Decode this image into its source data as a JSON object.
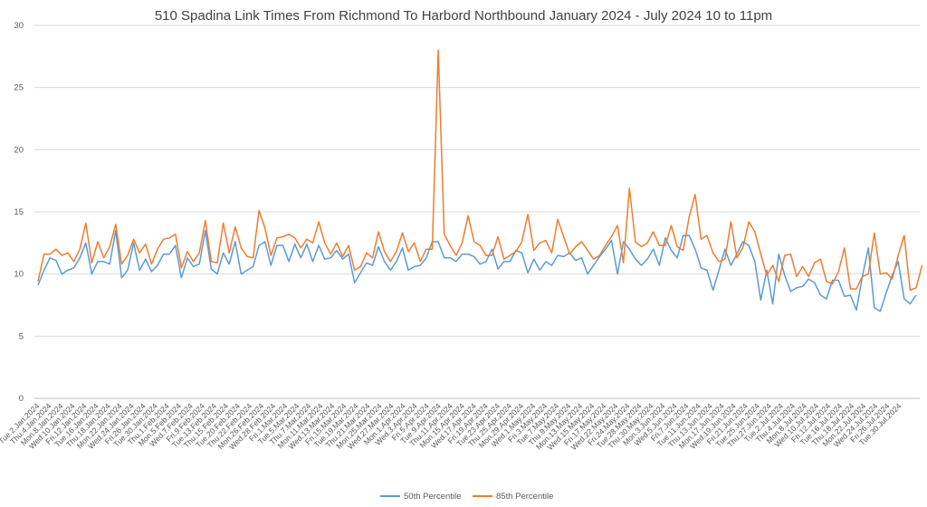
{
  "chart_data": {
    "type": "line",
    "title": "510 Spadina Link Times From Richmond To Harbord Northbound January 2024 - July 2024 10 to 11pm",
    "xlabel": "",
    "ylabel": "",
    "ylim": [
      0,
      30
    ],
    "yticks": [
      0,
      5,
      10,
      15,
      20,
      25,
      30
    ],
    "grid": true,
    "legend_position": "bottom",
    "x_tick_labels": [
      "Tue.2.Jan.2024",
      "Thu.4.Jan.2024",
      "Mon.8.Jan.2024",
      "Wed.10.Jan.2024",
      "Fri.12.Jan.2024",
      "Tue.16.Jan.2024",
      "Thu.18.Jan.2024",
      "Mon.22.Jan.2024",
      "Wed.24.Jan.2024",
      "Fri.26.Jan.2024",
      "Tue.30.Jan.2024",
      "Thu.1.Feb.2024",
      "Mon.5.Feb.2024",
      "Wed.7.Feb.2024",
      "Fri.9.Feb.2024",
      "Tue.13.Feb.2024",
      "Thu.15.Feb.2024",
      "Tue.20.Feb.2024",
      "Thu.22.Feb.2024",
      "Mon.26.Feb.2024",
      "Wed.28.Feb.2024",
      "Fri.1.Mar.2024",
      "Tue.5.Mar.2024",
      "Thu.7.Mar.2024",
      "Mon.11.Mar.2024",
      "Wed.13.Mar.2024",
      "Fri.15.Mar.2024",
      "Tue.19.Mar.2024",
      "Thu.21.Mar.2024",
      "Mon.25.Mar.2024",
      "Wed.27.Mar.2024",
      "Mon.1.Apr.2024",
      "Wed.3.Apr.2024",
      "Fri.5.Apr.2024",
      "Tue.9.Apr.2024",
      "Thu.11.Apr.2024",
      "Mon.15.Apr.2024",
      "Wed.17.Apr.2024",
      "Fri.19.Apr.2024",
      "Tue.23.Apr.2024",
      "Thu.25.Apr.2024",
      "Mon.29.Apr.2024",
      "Wed.1.May.2024",
      "Fri.3.May.2024",
      "Tue.7.May.2024",
      "Thu.9.May.2024",
      "Mon.13.May.2024",
      "Wed.15.May.2024",
      "Fri.17.May.2024",
      "Wed.22.May.2024",
      "Fri.24.May.2024",
      "Tue.28.May.2024",
      "Thu.30.May.2024",
      "Mon.3.Jun.2024",
      "Wed.5.Jun.2024",
      "Fri.7.Jun.2024",
      "Tue.11.Jun.2024",
      "Thu.13.Jun.2024",
      "Mon.17.Jun.2024",
      "Wed.19.Jun.2024",
      "Fri.21.Jun.2024",
      "Tue.25.Jun.2024",
      "Thu.27.Jun.2024",
      "Tue.2.Jul.2024",
      "Thu.4.Jul.2024",
      "Mon.8.Jul.2024",
      "Wed.10.Jul.2024",
      "Fri.12.Jul.2024",
      "Tue.16.Jul.2024",
      "Thu.18.Jul.2024",
      "Mon.22.Jul.2024",
      "Wed.24.Jul.2024",
      "Fri.26.Jul.2024",
      "Tue.30.Jul.2024"
    ],
    "series": [
      {
        "name": "50th Percentile",
        "color": "#5b9bd5",
        "values": [
          9.1,
          10.3,
          11.3,
          11.1,
          10.0,
          10.3,
          10.5,
          11.3,
          12.5,
          10.0,
          11.0,
          11.0,
          10.8,
          13.5,
          9.7,
          10.3,
          12.5,
          10.3,
          11.2,
          10.2,
          10.7,
          11.6,
          11.6,
          12.3,
          9.7,
          11.3,
          10.6,
          10.8,
          13.5,
          10.4,
          10.0,
          11.7,
          10.8,
          12.6,
          10.0,
          10.3,
          10.6,
          12.3,
          12.6,
          10.7,
          12.3,
          12.3,
          11.0,
          12.4,
          11.3,
          12.4,
          11.0,
          12.3,
          11.2,
          11.3,
          11.9,
          11.2,
          11.6,
          9.3,
          10.1,
          10.9,
          10.7,
          12.2,
          11.0,
          10.3,
          11.0,
          12.1,
          10.3,
          10.6,
          10.7,
          11.3,
          12.6,
          12.6,
          11.3,
          11.3,
          11.0,
          11.6,
          11.6,
          11.4,
          10.8,
          11.0,
          12.0,
          10.4,
          11.0,
          11.0,
          11.9,
          11.7,
          10.1,
          11.2,
          10.3,
          11.0,
          10.7,
          11.5,
          11.4,
          11.7,
          11.1,
          11.3,
          10.0,
          10.7,
          11.4,
          12.0,
          12.7,
          10.0,
          12.6,
          12.0,
          11.2,
          10.7,
          11.2,
          12.0,
          10.7,
          12.9,
          11.9,
          11.3,
          13.1,
          13.1,
          12.0,
          10.5,
          10.3,
          8.7,
          10.3,
          12.0,
          10.7,
          11.6,
          12.6,
          12.3,
          11.0,
          7.9,
          10.3,
          7.6,
          11.6,
          9.9,
          8.6,
          8.9,
          9.0,
          9.6,
          9.3,
          8.3,
          8.0,
          9.5,
          9.5,
          8.2,
          8.3,
          7.1,
          9.8,
          12.1,
          7.3,
          7.0,
          8.5,
          9.9,
          11.0,
          8.0,
          7.6,
          8.3
        ]
      },
      {
        "name": "85th Percentile",
        "color": "#ed7d31",
        "values": [
          9.4,
          11.6,
          11.6,
          12.0,
          11.5,
          11.7,
          11.0,
          12.0,
          14.1,
          10.9,
          12.6,
          11.3,
          12.2,
          14.0,
          10.8,
          11.5,
          12.8,
          11.7,
          12.4,
          10.8,
          12.0,
          12.8,
          12.9,
          13.2,
          10.5,
          11.8,
          11.0,
          11.7,
          14.3,
          11.0,
          10.9,
          14.1,
          11.7,
          13.8,
          12.1,
          11.4,
          11.3,
          15.1,
          13.7,
          11.5,
          12.9,
          13.0,
          13.2,
          12.9,
          12.1,
          12.8,
          12.5,
          14.2,
          12.5,
          11.6,
          12.5,
          11.4,
          12.3,
          10.3,
          10.6,
          11.7,
          11.3,
          13.4,
          11.8,
          11.0,
          11.8,
          13.3,
          11.8,
          12.5,
          11.0,
          12.0,
          12.0,
          28.0,
          13.2,
          12.3,
          11.5,
          12.5,
          14.7,
          12.6,
          12.3,
          11.5,
          11.5,
          13.0,
          11.2,
          11.5,
          11.8,
          12.6,
          14.8,
          11.9,
          12.5,
          12.7,
          11.7,
          14.4,
          13.0,
          11.6,
          12.2,
          12.6,
          11.9,
          11.2,
          11.5,
          12.3,
          13.0,
          13.9,
          10.9,
          16.9,
          12.6,
          12.2,
          12.5,
          13.4,
          12.3,
          12.3,
          13.9,
          12.2,
          11.9,
          14.6,
          16.4,
          12.8,
          13.1,
          11.7,
          11.0,
          11.2,
          14.2,
          11.3,
          12.1,
          14.2,
          13.4,
          11.6,
          9.9,
          10.7,
          9.4,
          11.5,
          11.6,
          9.8,
          10.6,
          9.8,
          10.9,
          11.2,
          9.4,
          9.2,
          10.2,
          12.1,
          8.8,
          8.8,
          9.8,
          10.0,
          13.3,
          10.0,
          10.1,
          9.6,
          11.5,
          13.1,
          8.7,
          8.9,
          10.7
        ]
      }
    ]
  }
}
